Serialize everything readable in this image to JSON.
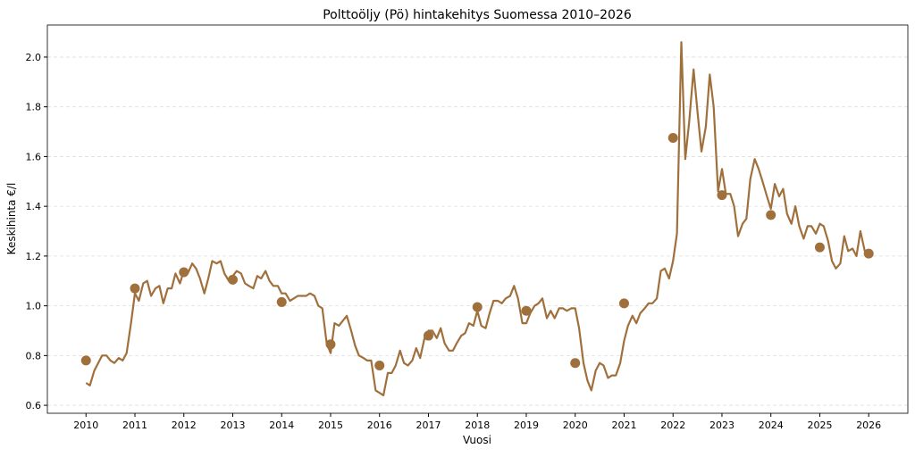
{
  "chart_data": {
    "type": "line",
    "title": "Polttoöljy (Pö) hintakehitys Suomessa 2010–2026",
    "xlabel": "Vuosi",
    "ylabel": "Keskihinta €/l",
    "xlim": [
      2009.21,
      2026.8
    ],
    "ylim": [
      0.568,
      2.129
    ],
    "x_ticks": [
      "2010",
      "2011",
      "2012",
      "2013",
      "2014",
      "2015",
      "2016",
      "2017",
      "2018",
      "2019",
      "2020",
      "2021",
      "2022",
      "2023",
      "2024",
      "2025",
      "2026"
    ],
    "y_ticks": [
      "0.6",
      "0.8",
      "1.0",
      "1.2",
      "1.4",
      "1.6",
      "1.8",
      "2.0"
    ],
    "grid": "horizontal dashed",
    "color": "#a0703c",
    "line": {
      "x": [
        2010.0,
        2010.08,
        2010.17,
        2010.33,
        2010.42,
        2010.5,
        2010.58,
        2010.67,
        2010.75,
        2010.83,
        2010.92,
        2011.0,
        2011.08,
        2011.17,
        2011.25,
        2011.33,
        2011.42,
        2011.5,
        2011.58,
        2011.67,
        2011.75,
        2011.83,
        2011.92,
        2012.0,
        2012.08,
        2012.17,
        2012.25,
        2012.33,
        2012.42,
        2012.5,
        2012.58,
        2012.67,
        2012.75,
        2012.83,
        2012.92,
        2013.0,
        2013.08,
        2013.17,
        2013.25,
        2013.33,
        2013.42,
        2013.5,
        2013.58,
        2013.67,
        2013.75,
        2013.83,
        2013.92,
        2014.0,
        2014.08,
        2014.17,
        2014.25,
        2014.33,
        2014.42,
        2014.5,
        2014.58,
        2014.67,
        2014.75,
        2014.83,
        2014.92,
        2015.0,
        2015.08,
        2015.17,
        2015.25,
        2015.33,
        2015.42,
        2015.5,
        2015.58,
        2015.67,
        2015.75,
        2015.83,
        2015.92,
        2016.0,
        2016.08,
        2016.17,
        2016.25,
        2016.33,
        2016.42,
        2016.5,
        2016.58,
        2016.67,
        2016.75,
        2016.83,
        2016.92,
        2017.0,
        2017.08,
        2017.17,
        2017.25,
        2017.33,
        2017.42,
        2017.5,
        2017.58,
        2017.67,
        2017.75,
        2017.83,
        2017.92,
        2018.0,
        2018.08,
        2018.17,
        2018.25,
        2018.33,
        2018.42,
        2018.5,
        2018.58,
        2018.67,
        2018.75,
        2018.83,
        2018.92,
        2019.0,
        2019.08,
        2019.17,
        2019.25,
        2019.33,
        2019.42,
        2019.5,
        2019.58,
        2019.67,
        2019.75,
        2019.83,
        2019.92,
        2020.0,
        2020.08,
        2020.17,
        2020.25,
        2020.33,
        2020.42,
        2020.5,
        2020.58,
        2020.67,
        2020.75,
        2020.83,
        2020.92,
        2021.0,
        2021.08,
        2021.17,
        2021.25,
        2021.33,
        2021.42,
        2021.5,
        2021.58,
        2021.67,
        2021.75,
        2021.83,
        2021.92,
        2022.0,
        2022.08,
        2022.17,
        2022.25,
        2022.33,
        2022.42,
        2022.5,
        2022.58,
        2022.67,
        2022.75,
        2022.83,
        2022.92,
        2023.0,
        2023.08,
        2023.17,
        2023.25,
        2023.33,
        2023.42,
        2023.5,
        2023.58,
        2023.67,
        2023.75,
        2023.83,
        2023.92,
        2024.0,
        2024.08,
        2024.17,
        2024.25,
        2024.33,
        2024.42,
        2024.5,
        2024.58,
        2024.67,
        2024.75,
        2024.83,
        2024.92,
        2025.0,
        2025.08,
        2025.17,
        2025.25,
        2025.33,
        2025.42,
        2025.5,
        2025.58,
        2025.67,
        2025.75,
        2025.83,
        2025.92,
        2026.0
      ],
      "y": [
        0.69,
        0.68,
        0.74,
        0.8,
        0.8,
        0.78,
        0.77,
        0.79,
        0.78,
        0.81,
        0.93,
        1.05,
        1.02,
        1.09,
        1.1,
        1.04,
        1.07,
        1.08,
        1.01,
        1.07,
        1.07,
        1.13,
        1.09,
        1.14,
        1.13,
        1.17,
        1.15,
        1.11,
        1.05,
        1.11,
        1.18,
        1.17,
        1.18,
        1.13,
        1.1,
        1.12,
        1.14,
        1.13,
        1.09,
        1.08,
        1.07,
        1.12,
        1.11,
        1.14,
        1.1,
        1.08,
        1.08,
        1.05,
        1.05,
        1.02,
        1.03,
        1.04,
        1.04,
        1.04,
        1.05,
        1.04,
        1.0,
        0.99,
        0.85,
        0.81,
        0.93,
        0.92,
        0.94,
        0.96,
        0.9,
        0.84,
        0.8,
        0.79,
        0.78,
        0.78,
        0.66,
        0.65,
        0.64,
        0.73,
        0.73,
        0.76,
        0.82,
        0.77,
        0.76,
        0.78,
        0.83,
        0.79,
        0.87,
        0.9,
        0.9,
        0.87,
        0.91,
        0.85,
        0.82,
        0.82,
        0.85,
        0.88,
        0.89,
        0.93,
        0.92,
        0.98,
        0.92,
        0.91,
        0.97,
        1.02,
        1.02,
        1.01,
        1.03,
        1.04,
        1.08,
        1.03,
        0.93,
        0.93,
        0.97,
        1.0,
        1.01,
        1.03,
        0.95,
        0.98,
        0.95,
        0.99,
        0.99,
        0.98,
        0.99,
        0.99,
        0.91,
        0.77,
        0.7,
        0.66,
        0.74,
        0.77,
        0.76,
        0.71,
        0.72,
        0.72,
        0.77,
        0.86,
        0.92,
        0.96,
        0.93,
        0.97,
        0.99,
        1.01,
        1.01,
        1.03,
        1.14,
        1.15,
        1.11,
        1.18,
        1.29,
        2.06,
        1.59,
        1.74,
        1.95,
        1.78,
        1.62,
        1.72,
        1.93,
        1.8,
        1.46,
        1.55,
        1.45,
        1.45,
        1.4,
        1.28,
        1.33,
        1.35,
        1.51,
        1.59,
        1.55,
        1.5,
        1.44,
        1.39,
        1.49,
        1.44,
        1.47,
        1.37,
        1.33,
        1.4,
        1.32,
        1.27,
        1.32,
        1.32,
        1.29,
        1.33,
        1.32,
        1.26,
        1.18,
        1.15,
        1.17,
        1.28,
        1.22,
        1.23,
        1.2,
        1.3,
        1.22,
        1.21
      ]
    },
    "points": {
      "x": [
        2010,
        2011,
        2012,
        2013,
        2014,
        2015,
        2016,
        2017,
        2018,
        2019,
        2020,
        2021,
        2022,
        2023,
        2024,
        2025,
        2026
      ],
      "y": [
        0.78,
        1.07,
        1.135,
        1.105,
        1.015,
        0.845,
        0.76,
        0.88,
        0.995,
        0.98,
        0.77,
        1.01,
        1.675,
        1.445,
        1.365,
        1.235,
        1.21
      ]
    }
  }
}
